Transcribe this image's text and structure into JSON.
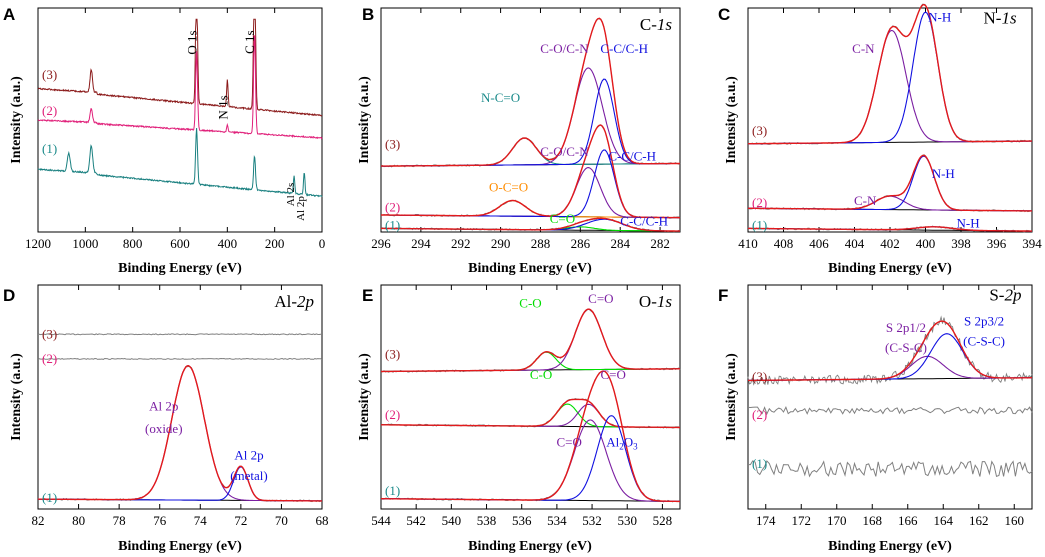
{
  "figure": {
    "y_axis_label": "Intensity (a.u.)",
    "x_axis_label": "Binding Energy (eV)"
  },
  "colors": {
    "raw": "#808080",
    "fit": "#e31a1c",
    "background": "#000000",
    "blue": "#1010e0",
    "purple": "#7b1fa2",
    "green": "#00dd00",
    "orange": "#ff8c00",
    "teal": "#1a8a8a",
    "survey3": "#8b1a1a",
    "survey2": "#e0207a",
    "survey1": "#1a8080",
    "label3": "#8b1a1a",
    "label2": "#e0207a",
    "label1": "#1a8a8a"
  },
  "chart_data": [
    {
      "panel": "A",
      "type": "line",
      "title": "",
      "xlabel": "Binding Energy (eV)",
      "ylabel": "Intensity (a.u.)",
      "xlim": [
        1200,
        0
      ],
      "x_reversed": true,
      "xticks": [
        1200,
        1000,
        800,
        600,
        400,
        200,
        0
      ],
      "series": [
        {
          "name": "(3)",
          "color_key": "survey3",
          "baseline": 0.36,
          "slope": 0.12,
          "peaks": [
            [
              975,
              0.1,
              5
            ],
            [
              530,
              0.55,
              4
            ],
            [
              400,
              0.12,
              3
            ],
            [
              285,
              0.72,
              4
            ]
          ]
        },
        {
          "name": "(2)",
          "color_key": "survey2",
          "baseline": 0.5,
          "slope": 0.08,
          "peaks": [
            [
              975,
              0.06,
              5
            ],
            [
              530,
              0.35,
              4
            ],
            [
              400,
              0.03,
              3
            ],
            [
              285,
              0.45,
              4
            ]
          ]
        },
        {
          "name": "(1)",
          "color_key": "survey1",
          "baseline": 0.72,
          "slope": 0.12,
          "peaks": [
            [
              1070,
              0.08,
              6
            ],
            [
              975,
              0.12,
              6
            ],
            [
              530,
              0.25,
              4
            ],
            [
              285,
              0.15,
              4
            ],
            [
              118,
              0.08,
              3
            ],
            [
              75,
              0.1,
              3
            ]
          ]
        }
      ],
      "annotations": [
        {
          "text": "O 1s",
          "x": 531,
          "y": 0.1,
          "rotate": true
        },
        {
          "text": "C 1s",
          "x": 288,
          "y": 0.1,
          "rotate": true
        },
        {
          "text": "N 1s",
          "x": 400,
          "y": 0.39,
          "rotate": true
        },
        {
          "text": "Al 2s",
          "x": 118,
          "y": 0.78,
          "rotate": true,
          "small": true
        },
        {
          "text": "Al 2p",
          "x": 75,
          "y": 0.84,
          "rotate": true,
          "small": true
        }
      ],
      "sample_labels": [
        {
          "text": "(3)",
          "y": 0.3,
          "color_key": "label3"
        },
        {
          "text": "(2)",
          "y": 0.46,
          "color_key": "label2"
        },
        {
          "text": "(1)",
          "y": 0.63,
          "color_key": "label1"
        }
      ]
    },
    {
      "panel": "B",
      "type": "line",
      "title": "C-1s",
      "xlabel": "Binding Energy (eV)",
      "ylabel": "Intensity (a.u.)",
      "xlim": [
        296,
        281
      ],
      "x_reversed": true,
      "xticks": [
        296,
        294,
        292,
        290,
        288,
        286,
        284,
        282
      ],
      "spectra": [
        {
          "sample": "(3)",
          "baseline": 0.7,
          "components": [
            {
              "center": 288.8,
              "amp": 0.12,
              "width": 0.6,
              "color_key": "teal",
              "label": "N-C=O"
            },
            {
              "center": 285.6,
              "amp": 0.43,
              "width": 0.7,
              "color_key": "purple",
              "label": "C-O/C-N"
            },
            {
              "center": 284.8,
              "amp": 0.38,
              "width": 0.5,
              "color_key": "blue",
              "label": "C-C/C-H"
            }
          ]
        },
        {
          "sample": "(2)",
          "baseline": 0.93,
          "components": [
            {
              "center": 289.4,
              "amp": 0.07,
              "width": 0.65,
              "color_key": "orange",
              "label": "O-C=O"
            },
            {
              "center": 285.6,
              "amp": 0.22,
              "width": 0.6,
              "color_key": "purple",
              "label": "C-O/C-N"
            },
            {
              "center": 284.8,
              "amp": 0.3,
              "width": 0.5,
              "color_key": "blue",
              "label": "C-C/C-H"
            }
          ]
        },
        {
          "sample": "(1)",
          "baseline": 0.99,
          "components": [
            {
              "center": 286.0,
              "amp": 0.015,
              "width": 0.7,
              "color_key": "green",
              "label": "C=O"
            },
            {
              "center": 284.8,
              "amp": 0.05,
              "width": 0.9,
              "color_key": "blue",
              "label": "C-C/C-H"
            }
          ]
        }
      ],
      "annotations": [
        {
          "text": "C-O/C-N",
          "x": 286.8,
          "y": 0.2,
          "color_key": "purple"
        },
        {
          "text": "C-C/C-H",
          "x": 283.8,
          "y": 0.2,
          "color_key": "blue"
        },
        {
          "text": "N-C=O",
          "x": 290.0,
          "y": 0.42,
          "color_key": "teal"
        },
        {
          "text": "C-O/C-N",
          "x": 286.8,
          "y": 0.66,
          "color_key": "purple"
        },
        {
          "text": "C-C/C-H",
          "x": 283.4,
          "y": 0.68,
          "color_key": "blue"
        },
        {
          "text": "O-C=O",
          "x": 289.6,
          "y": 0.82,
          "color_key": "orange"
        },
        {
          "text": "C=O",
          "x": 286.9,
          "y": 0.96,
          "color_key": "green"
        },
        {
          "text": "C-C/C-H",
          "x": 282.8,
          "y": 0.97,
          "color_key": "blue"
        }
      ],
      "sample_labels": [
        {
          "text": "(3)",
          "y": 0.61,
          "color_key": "label3"
        },
        {
          "text": "(2)",
          "y": 0.89,
          "color_key": "label2"
        },
        {
          "text": "(1)",
          "y": 0.97,
          "color_key": "label1"
        }
      ]
    },
    {
      "panel": "C",
      "type": "line",
      "title": "N-1s",
      "xlabel": "Binding Energy (eV)",
      "ylabel": "Intensity (a.u.)",
      "xlim": [
        410,
        394
      ],
      "x_reversed": true,
      "xticks": [
        410,
        408,
        406,
        404,
        402,
        400,
        398,
        396,
        394
      ],
      "spectra": [
        {
          "sample": "(3)",
          "baseline": 0.6,
          "components": [
            {
              "center": 401.9,
              "amp": 0.5,
              "width": 0.8,
              "color_key": "purple",
              "label": "C-N"
            },
            {
              "center": 400.0,
              "amp": 0.58,
              "width": 0.7,
              "color_key": "blue",
              "label": "N-H"
            }
          ]
        },
        {
          "sample": "(2)",
          "baseline": 0.9,
          "components": [
            {
              "center": 402.0,
              "amp": 0.06,
              "width": 0.8,
              "color_key": "purple",
              "label": "C-N"
            },
            {
              "center": 400.1,
              "amp": 0.24,
              "width": 0.6,
              "color_key": "blue",
              "label": "N-H"
            }
          ]
        },
        {
          "sample": "(1)",
          "baseline": 0.99,
          "components": [
            {
              "center": 399.5,
              "amp": 0.015,
              "width": 1.0,
              "color_key": "blue",
              "label": "N-H"
            }
          ]
        }
      ],
      "annotations": [
        {
          "text": "N-1s",
          "x": 395.8,
          "y": 0.07,
          "title": true
        },
        {
          "text": "N-H",
          "x": 399.2,
          "y": 0.06,
          "color_key": "blue"
        },
        {
          "text": "C-N",
          "x": 403.5,
          "y": 0.2,
          "color_key": "purple"
        },
        {
          "text": "N-H",
          "x": 399.0,
          "y": 0.76,
          "color_key": "blue"
        },
        {
          "text": "C-N",
          "x": 403.4,
          "y": 0.88,
          "color_key": "purple"
        },
        {
          "text": "N-H",
          "x": 397.6,
          "y": 0.98,
          "color_key": "blue"
        }
      ],
      "sample_labels": [
        {
          "text": "(3)",
          "y": 0.55,
          "color_key": "label3"
        },
        {
          "text": "(2)",
          "y": 0.87,
          "color_key": "label2"
        },
        {
          "text": "(1)",
          "y": 0.97,
          "color_key": "label1"
        }
      ]
    },
    {
      "panel": "D",
      "type": "line",
      "title": "Al-2p",
      "xlabel": "Binding Energy (eV)",
      "ylabel": "Intensity (a.u.)",
      "xlim": [
        82,
        68
      ],
      "x_reversed": true,
      "xticks": [
        82,
        80,
        78,
        76,
        74,
        72,
        70,
        68
      ],
      "flat_lines": [
        {
          "sample": "(3)",
          "baseline": 0.22
        },
        {
          "sample": "(2)",
          "baseline": 0.33
        }
      ],
      "spectra": [
        {
          "sample": "(1)",
          "baseline": 0.95,
          "baseline_slope": 0.02,
          "components": [
            {
              "center": 74.6,
              "amp": 0.6,
              "width": 0.8,
              "color_key": "purple",
              "label": "Al 2p (oxide)"
            },
            {
              "center": 72.0,
              "amp": 0.15,
              "width": 0.35,
              "color_key": "blue",
              "label": "Al 2p (metal)"
            }
          ]
        }
      ],
      "annotations": [
        {
          "text": "Al 2p",
          "x": 75.8,
          "y": 0.56,
          "color_key": "purple"
        },
        {
          "text": "(oxide)",
          "x": 75.8,
          "y": 0.66,
          "color_key": "purple"
        },
        {
          "text": "Al 2p",
          "x": 71.6,
          "y": 0.78,
          "color_key": "blue"
        },
        {
          "text": "(metal)",
          "x": 71.6,
          "y": 0.87,
          "color_key": "blue"
        }
      ],
      "sample_labels": [
        {
          "text": "(3)",
          "y": 0.22,
          "color_key": "label3"
        },
        {
          "text": "(2)",
          "y": 0.33,
          "color_key": "label2"
        },
        {
          "text": "(1)",
          "y": 0.95,
          "color_key": "label1"
        }
      ]
    },
    {
      "panel": "E",
      "type": "line",
      "title": "O-1s",
      "xlabel": "Binding Energy (eV)",
      "ylabel": "Intensity (a.u.)",
      "xlim": [
        544,
        527
      ],
      "x_reversed": true,
      "xticks": [
        544,
        542,
        540,
        538,
        536,
        534,
        532,
        530,
        528
      ],
      "spectra": [
        {
          "sample": "(3)",
          "baseline": 0.38,
          "components": [
            {
              "center": 534.6,
              "amp": 0.08,
              "width": 0.55,
              "color_key": "green",
              "label": "C-O"
            },
            {
              "center": 532.2,
              "amp": 0.27,
              "width": 0.75,
              "color_key": "purple",
              "label": "C=O"
            }
          ]
        },
        {
          "sample": "(2)",
          "baseline": 0.63,
          "components": [
            {
              "center": 533.4,
              "amp": 0.1,
              "width": 0.6,
              "color_key": "green",
              "label": "C-O"
            },
            {
              "center": 532.2,
              "amp": 0.1,
              "width": 0.6,
              "color_key": "purple",
              "label": "C=O"
            }
          ]
        },
        {
          "sample": "(1)",
          "baseline": 0.96,
          "components": [
            {
              "center": 532.1,
              "amp": 0.36,
              "width": 0.9,
              "color_key": "purple",
              "label": "C=O"
            },
            {
              "center": 530.9,
              "amp": 0.38,
              "width": 0.8,
              "color_key": "blue",
              "label": "Al2O3"
            }
          ]
        }
      ],
      "annotations": [
        {
          "text": "C=O",
          "x": 531.5,
          "y": 0.08,
          "color_key": "purple"
        },
        {
          "text": "C-O",
          "x": 535.5,
          "y": 0.1,
          "color_key": "green"
        },
        {
          "text": "C-O",
          "x": 534.9,
          "y": 0.42,
          "color_key": "green"
        },
        {
          "text": "C=O",
          "x": 530.8,
          "y": 0.42,
          "color_key": "purple"
        },
        {
          "text": "C=O",
          "x": 533.3,
          "y": 0.72,
          "color_key": "purple"
        },
        {
          "text": "Al",
          "x": 530.3,
          "y": 0.72,
          "color_key": "blue",
          "subscript": "2",
          "suffix": "O",
          "subscript2": "3"
        }
      ],
      "sample_labels": [
        {
          "text": "(3)",
          "y": 0.31,
          "color_key": "label3"
        },
        {
          "text": "(2)",
          "y": 0.58,
          "color_key": "label2"
        },
        {
          "text": "(1)",
          "y": 0.92,
          "color_key": "label1"
        }
      ]
    },
    {
      "panel": "F",
      "type": "line",
      "title": "S-2p",
      "xlabel": "Binding Energy (eV)",
      "ylabel": "Intensity (a.u.)",
      "xlim": [
        175,
        159
      ],
      "x_reversed": true,
      "xticks": [
        174,
        172,
        170,
        168,
        166,
        164,
        162,
        160
      ],
      "noisy_lines": [
        {
          "sample": "(2)",
          "baseline": 0.56,
          "noise": 0.03
        },
        {
          "sample": "(1)",
          "baseline": 0.82,
          "noise": 0.07
        }
      ],
      "spectra": [
        {
          "sample": "(3)",
          "baseline": 0.42,
          "noise": 0.04,
          "components": [
            {
              "center": 164.9,
              "amp": 0.1,
              "width": 0.9,
              "color_key": "purple",
              "label": "S 2p1/2 (C-S-C)"
            },
            {
              "center": 163.8,
              "amp": 0.2,
              "width": 0.9,
              "color_key": "blue",
              "label": "S 2p3/2 (C-S-C)"
            }
          ]
        }
      ],
      "annotations": [
        {
          "text": "S-2p",
          "x": 160.5,
          "y": 0.07,
          "title": true
        },
        {
          "text": "S 2p3/2",
          "x": 161.7,
          "y": 0.18,
          "color_key": "blue"
        },
        {
          "text": "(C-S-C)",
          "x": 161.7,
          "y": 0.27,
          "color_key": "blue"
        },
        {
          "text": "S 2p1/2",
          "x": 166.1,
          "y": 0.21,
          "color_key": "purple"
        },
        {
          "text": "(C-S-C)",
          "x": 166.1,
          "y": 0.3,
          "color_key": "purple"
        }
      ],
      "sample_labels": [
        {
          "text": "(3)",
          "y": 0.41,
          "color_key": "label3"
        },
        {
          "text": "(2)",
          "y": 0.58,
          "color_key": "label2"
        },
        {
          "text": "(1)",
          "y": 0.8,
          "color_key": "label1"
        }
      ]
    }
  ]
}
